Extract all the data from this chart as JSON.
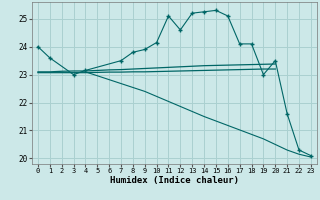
{
  "xlabel": "Humidex (Indice chaleur)",
  "bg_color": "#cce8e8",
  "grid_color": "#aad0d0",
  "line_color": "#006666",
  "xlim": [
    -0.5,
    23.5
  ],
  "ylim": [
    19.8,
    25.6
  ],
  "yticks": [
    20,
    21,
    22,
    23,
    24,
    25
  ],
  "xticks": [
    0,
    1,
    2,
    3,
    4,
    5,
    6,
    7,
    8,
    9,
    10,
    11,
    12,
    13,
    14,
    15,
    16,
    17,
    18,
    19,
    20,
    21,
    22,
    23
  ],
  "curve_main_x": [
    0,
    1,
    3,
    4,
    7,
    8,
    9,
    10,
    11,
    12,
    13,
    14,
    15,
    16,
    17,
    18,
    19,
    20,
    21,
    22,
    23
  ],
  "curve_main_y": [
    24.0,
    23.6,
    23.0,
    23.15,
    23.5,
    23.8,
    23.9,
    24.15,
    25.1,
    24.6,
    25.2,
    25.25,
    25.3,
    25.1,
    24.1,
    24.1,
    23.0,
    23.5,
    21.6,
    20.3,
    20.1
  ],
  "curve_flat1_x": [
    0,
    1,
    2,
    3,
    4,
    5,
    6,
    7,
    8,
    9,
    10,
    11,
    12,
    13,
    14,
    15,
    16,
    17,
    18,
    19,
    20
  ],
  "curve_flat1_y": [
    23.1,
    23.1,
    23.12,
    23.13,
    23.13,
    23.15,
    23.17,
    23.18,
    23.2,
    23.22,
    23.24,
    23.26,
    23.28,
    23.3,
    23.32,
    23.33,
    23.34,
    23.35,
    23.36,
    23.37,
    23.38
  ],
  "curve_flat2_x": [
    0,
    1,
    2,
    3,
    4,
    5,
    6,
    7,
    8,
    9,
    10,
    11,
    12,
    13,
    14,
    15,
    16,
    17,
    18,
    19,
    20
  ],
  "curve_flat2_y": [
    23.07,
    23.07,
    23.07,
    23.07,
    23.07,
    23.08,
    23.09,
    23.09,
    23.1,
    23.1,
    23.11,
    23.12,
    23.13,
    23.14,
    23.15,
    23.16,
    23.17,
    23.18,
    23.19,
    23.2,
    23.2
  ],
  "curve_diag_x": [
    4,
    9,
    14,
    19,
    21,
    22,
    23
  ],
  "curve_diag_y": [
    23.1,
    22.4,
    21.5,
    20.7,
    20.3,
    20.15,
    20.05
  ]
}
